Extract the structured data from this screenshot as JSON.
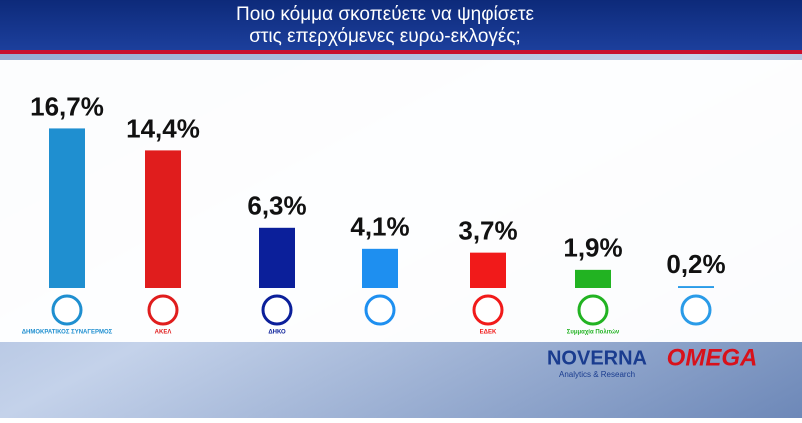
{
  "chart_data": {
    "type": "bar",
    "title": [
      "Ποιο κόμμα σκοπεύετε να ψηφίσετε",
      "στις επερχόμενες ευρω-εκλογές;"
    ],
    "categories": [
      "ΔΗΜΟΚΡΑΤΙΚΟΣ ΣΥΝΑΓΕΡΜΟΣ",
      "ΑΚΕΛ",
      "ΔΗΚΟ",
      null,
      "ΕΔΕΚ",
      "Συμμαχία Πολιτών",
      null
    ],
    "values": [
      16.7,
      14.4,
      6.3,
      4.1,
      3.7,
      1.9,
      0.2
    ],
    "value_labels": [
      "16,7%",
      "14,4%",
      "6,3%",
      "4,1%",
      "3,7%",
      "1,9%",
      "0,2%"
    ],
    "colors": [
      "#1f8fd0",
      "#e01d1d",
      "#0b1f9a",
      "#1e8ff0",
      "#f11a1a",
      "#22b322",
      "#2a9be8"
    ],
    "ylim": [
      0,
      18
    ]
  },
  "branding": {
    "pollster": "NOVERNA",
    "pollster_sub": "Analytics & Research",
    "channel": "OMEGA"
  }
}
